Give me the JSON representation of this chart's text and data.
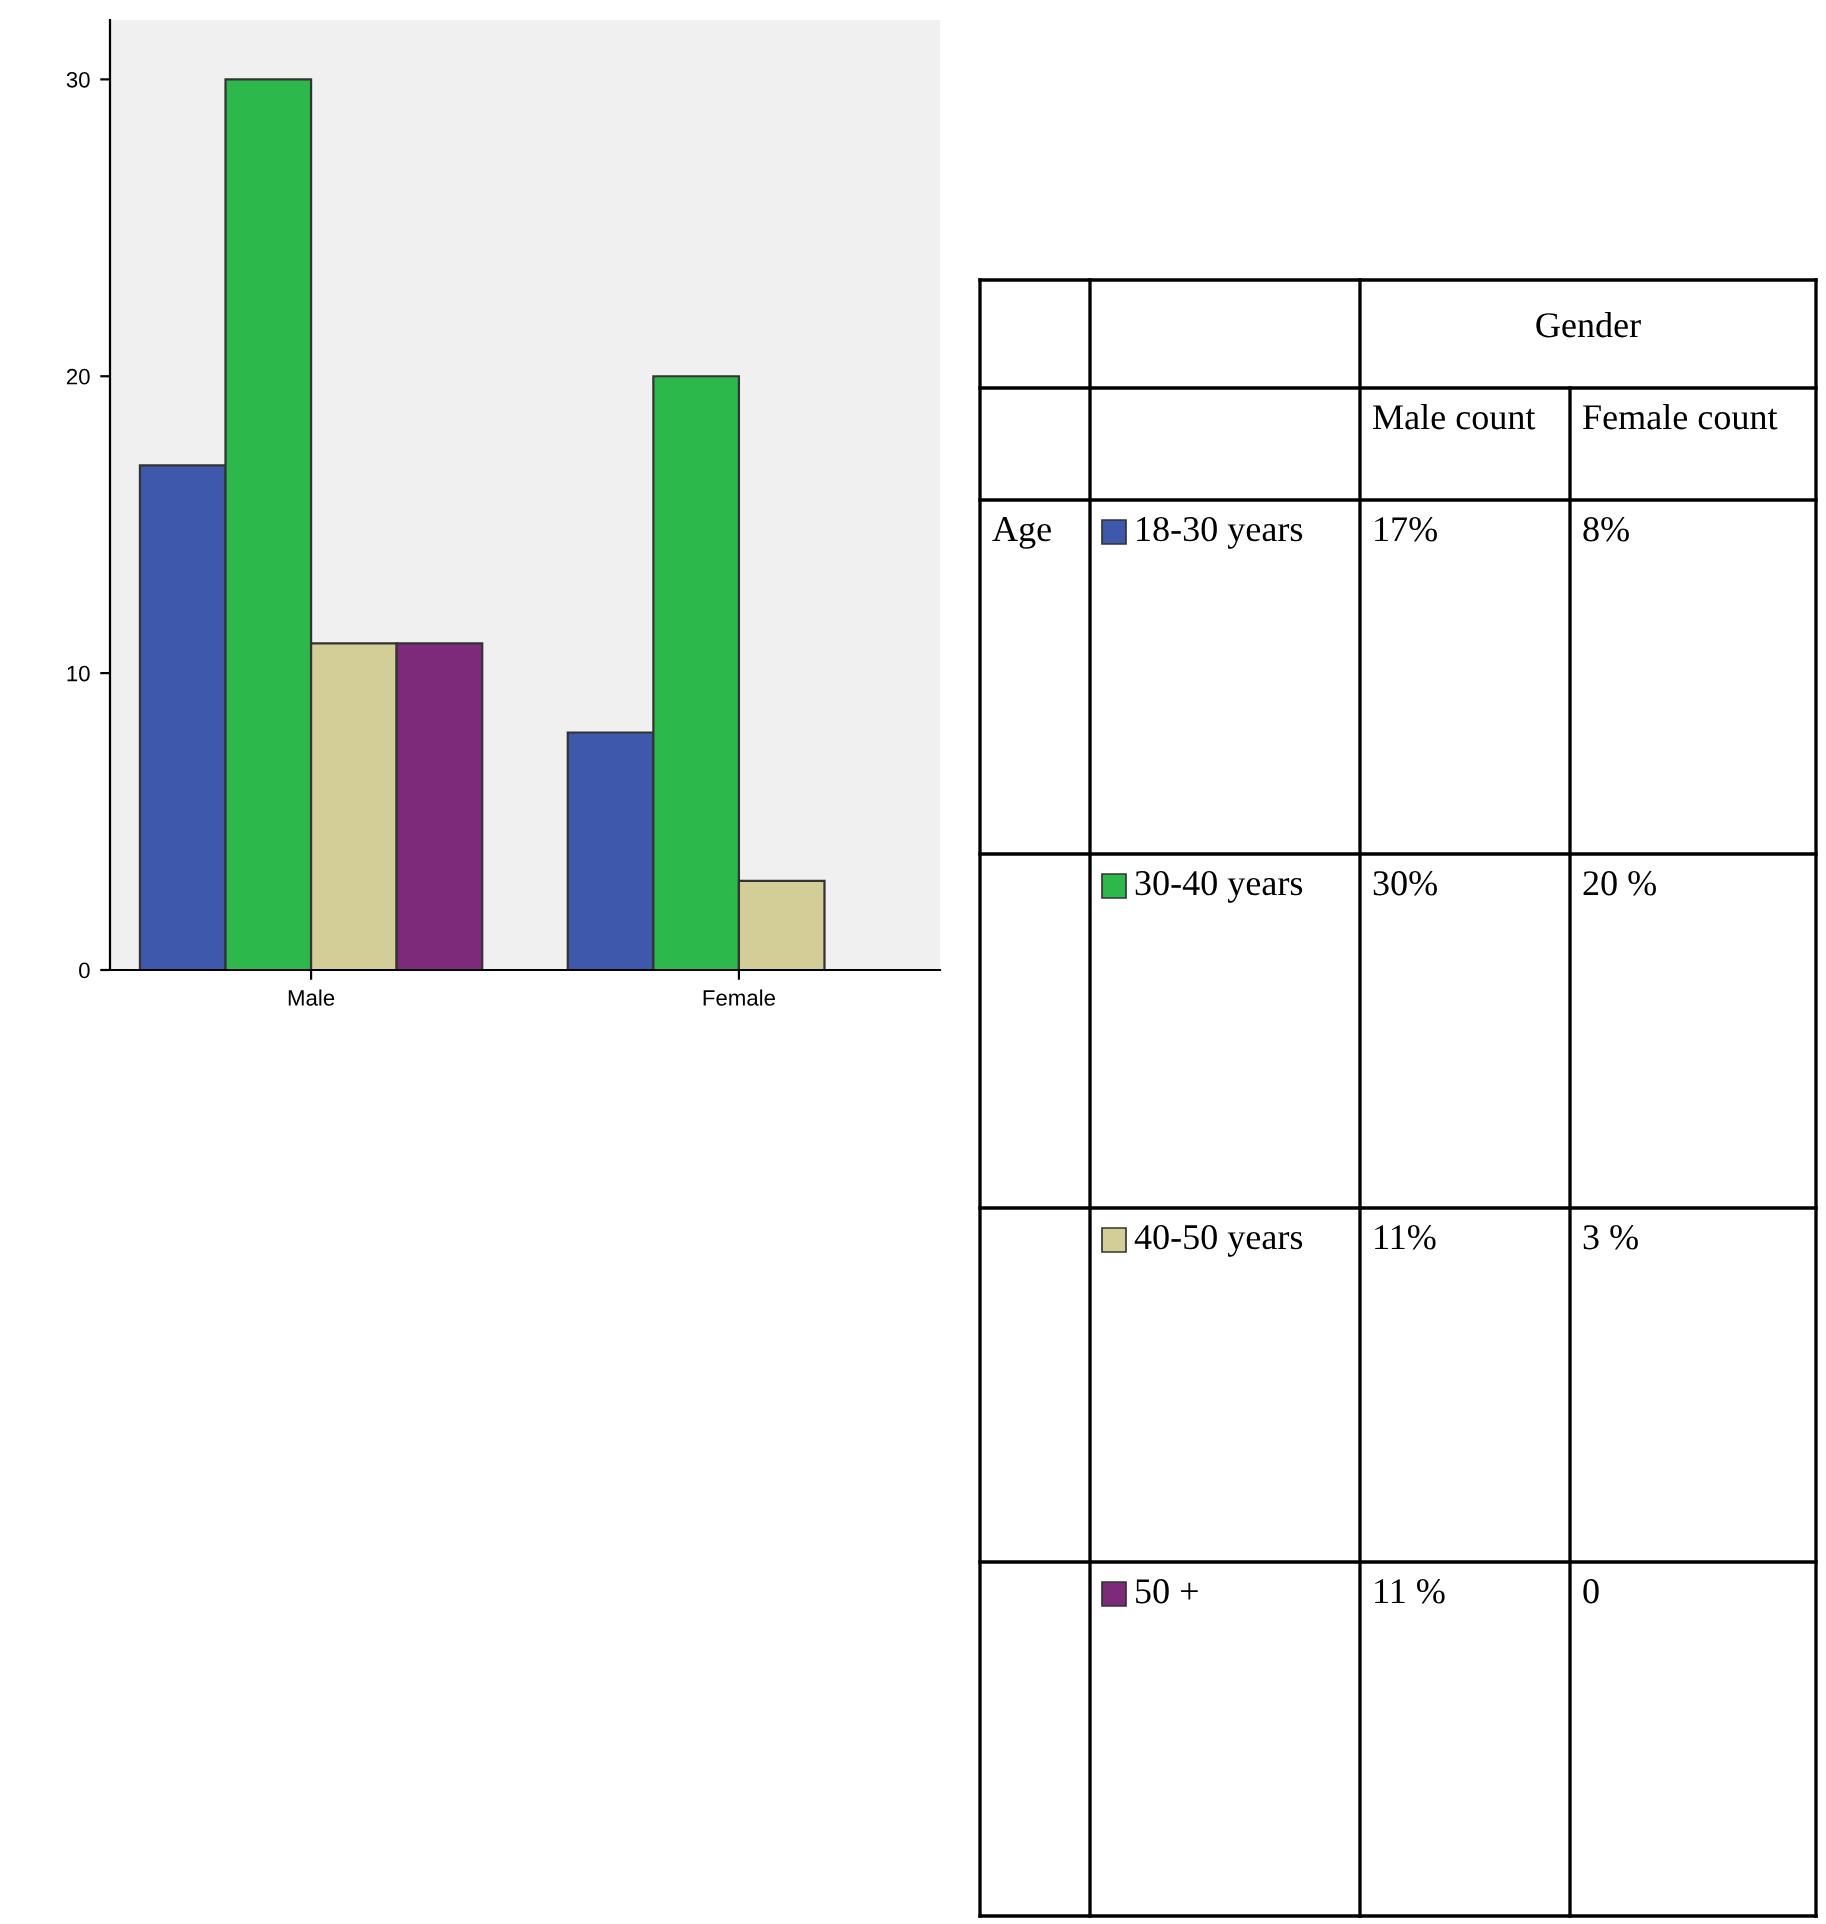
{
  "chart_data": {
    "type": "bar",
    "categories": [
      "Male",
      "Female"
    ],
    "series": [
      {
        "name": "18-30 years",
        "color": "#3e58ac",
        "values": [
          17,
          8
        ]
      },
      {
        "name": "30-40 years",
        "color": "#2db84b",
        "values": [
          30,
          20
        ]
      },
      {
        "name": "40-50 years",
        "color": "#d3ce97",
        "values": [
          11,
          3
        ]
      },
      {
        "name": "50 +",
        "color": "#7d2a7b",
        "values": [
          11,
          0
        ]
      }
    ],
    "legend": "right",
    "ylim": [
      0,
      32
    ],
    "yticks": [
      0,
      10,
      20,
      30
    ],
    "annotations": [
      "Gender",
      "Male count",
      "Female count",
      "Age",
      "17%",
      "8%",
      "30%",
      "20 %",
      "11%",
      "3 %",
      "11 %",
      "0"
    ]
  }
}
